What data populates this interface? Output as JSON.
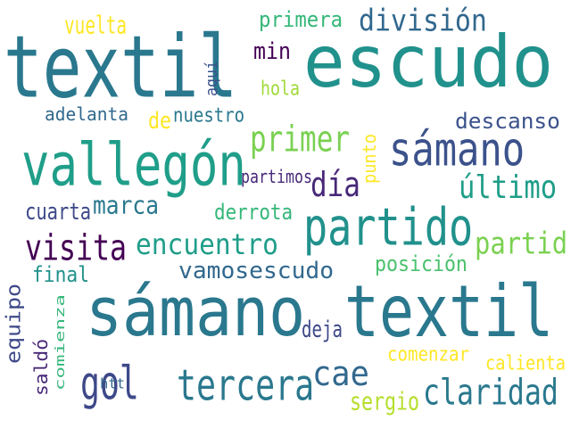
{
  "words": [
    {
      "text": "textil",
      "color": "#2a788e"
    },
    {
      "text": "escudo",
      "color": "#21918c"
    },
    {
      "text": "sámano",
      "color": "#2a788e"
    },
    {
      "text": "textil",
      "color": "#2a788e"
    },
    {
      "text": "vallegón",
      "color": "#1f9e89"
    },
    {
      "text": "sámano",
      "color": "#3b528b"
    },
    {
      "text": "partido",
      "color": "#21918c"
    },
    {
      "text": "primer",
      "color": "#7ad151"
    },
    {
      "text": "día",
      "color": "#482878"
    },
    {
      "text": "último",
      "color": "#1f9e89"
    },
    {
      "text": "visita",
      "color": "#440154"
    },
    {
      "text": "encuentro",
      "color": "#1f9e89"
    },
    {
      "text": "partid",
      "color": "#7ad151"
    },
    {
      "text": "vamosescudo",
      "color": "#31688e"
    },
    {
      "text": "división",
      "color": "#31688e"
    },
    {
      "text": "tercera",
      "color": "#2a788e"
    },
    {
      "text": "claridad",
      "color": "#2a788e"
    },
    {
      "text": "gol",
      "color": "#3e4989"
    },
    {
      "text": "cae",
      "color": "#31688e"
    },
    {
      "text": "vuelta",
      "color": "#fde725"
    },
    {
      "text": "primera",
      "color": "#35b779"
    },
    {
      "text": "min",
      "color": "#440154"
    },
    {
      "text": "aquí",
      "color": "#3b528b"
    },
    {
      "text": "hola",
      "color": "#a0da39"
    },
    {
      "text": "adelanta",
      "color": "#31688e"
    },
    {
      "text": "de",
      "color": "#fde725"
    },
    {
      "text": "nuestro",
      "color": "#2a788e"
    },
    {
      "text": "descanso",
      "color": "#3b528b"
    },
    {
      "text": "punto",
      "color": "#fde725"
    },
    {
      "text": "partimos",
      "color": "#482878"
    },
    {
      "text": "cuarta",
      "color": "#3e4989"
    },
    {
      "text": "marca",
      "color": "#2a788e"
    },
    {
      "text": "derrota",
      "color": "#35b779"
    },
    {
      "text": "posición",
      "color": "#4ac16d"
    },
    {
      "text": "final",
      "color": "#21918c"
    },
    {
      "text": "equipo",
      "color": "#3e4989"
    },
    {
      "text": "saldó",
      "color": "#482878"
    },
    {
      "text": "comienza",
      "color": "#35b779"
    },
    {
      "text": "deja",
      "color": "#3e4989"
    },
    {
      "text": "comenzar",
      "color": "#fde725"
    },
    {
      "text": "calienta",
      "color": "#fde725"
    },
    {
      "text": "sergio",
      "color": "#b5de2b"
    },
    {
      "text": "htt",
      "color": "#31688e"
    }
  ]
}
